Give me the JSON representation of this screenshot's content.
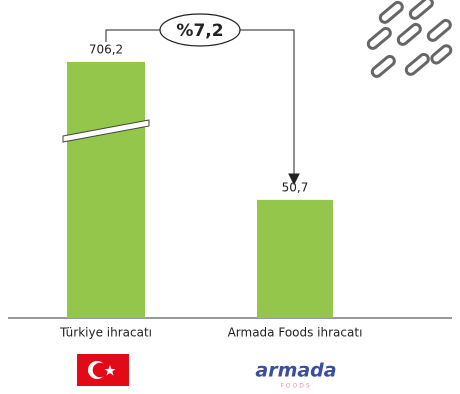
{
  "chart_data": {
    "type": "bar",
    "categories": [
      "Türkiye ihracatı",
      "Armada Foods ihracatı"
    ],
    "values": [
      706.2,
      50.7
    ],
    "value_labels": [
      "706,2",
      "50,7"
    ],
    "color": "#94c64c",
    "broken_axis": true,
    "annotation": "%7,2"
  },
  "logo": {
    "name": "armada",
    "sub": "FOODS"
  }
}
